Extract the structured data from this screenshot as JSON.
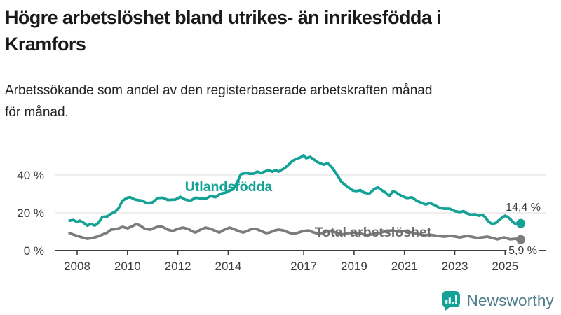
{
  "header": {
    "title_line1": "Högre arbetslöshet bland utrikes- än inrikesfödda i",
    "title_line2": "Kramfors",
    "subtitle_line1": "Arbetssökande som andel av den registerbaserade arbetskraften månad",
    "subtitle_line2": "för månad."
  },
  "chart_data": {
    "type": "line",
    "title": "Högre arbetslöshet bland utrikes- än inrikesfödda i Kramfors",
    "subtitle": "Arbetssökande som andel av den registerbaserade arbetskraften månad för månad.",
    "unit": "%",
    "grid": "horizontal-only",
    "legend_position": "inline-labels-on-lines",
    "x_axis": {
      "tick_years": [
        2008,
        2010,
        2012,
        2014,
        2017,
        2019,
        2021,
        2023,
        2025
      ],
      "tick_labels": [
        "2008",
        "2010",
        "2012",
        "2014",
        "2017",
        "2019",
        "2021",
        "2023",
        "2025"
      ],
      "range": [
        2007.6,
        2026.3
      ]
    },
    "y_axis": {
      "tick_values": [
        0,
        20,
        40
      ],
      "tick_labels": [
        "0 %",
        "20 %",
        "40 %"
      ],
      "ylim": [
        0,
        52
      ]
    },
    "series": [
      {
        "name": "Utlandsfödda",
        "color": "#15a296",
        "label_color": "#15a296",
        "end_label": "14,4 %",
        "end_value": 14.4,
        "points": [
          [
            2007.7,
            15.9
          ],
          [
            2007.85,
            16.2
          ],
          [
            2008.0,
            15.2
          ],
          [
            2008.1,
            15.9
          ],
          [
            2008.25,
            14.8
          ],
          [
            2008.4,
            13.3
          ],
          [
            2008.55,
            14.1
          ],
          [
            2008.7,
            13.3
          ],
          [
            2008.85,
            14.8
          ],
          [
            2009.0,
            17.8
          ],
          [
            2009.2,
            18.1
          ],
          [
            2009.35,
            19.6
          ],
          [
            2009.5,
            20.4
          ],
          [
            2009.65,
            22.5
          ],
          [
            2009.8,
            26.4
          ],
          [
            2010.0,
            28.0
          ],
          [
            2010.1,
            28.3
          ],
          [
            2010.3,
            27.0
          ],
          [
            2010.6,
            26.4
          ],
          [
            2010.75,
            25.2
          ],
          [
            2011.0,
            25.5
          ],
          [
            2011.2,
            27.8
          ],
          [
            2011.4,
            28.0
          ],
          [
            2011.6,
            26.8
          ],
          [
            2011.9,
            27.0
          ],
          [
            2012.1,
            28.5
          ],
          [
            2012.3,
            27.0
          ],
          [
            2012.5,
            26.4
          ],
          [
            2012.7,
            28.0
          ],
          [
            2012.9,
            27.7
          ],
          [
            2013.1,
            27.4
          ],
          [
            2013.3,
            28.9
          ],
          [
            2013.5,
            28.3
          ],
          [
            2013.7,
            30.1
          ],
          [
            2013.9,
            30.7
          ],
          [
            2014.0,
            31.4
          ],
          [
            2014.2,
            32.5
          ],
          [
            2014.35,
            36.0
          ],
          [
            2014.5,
            40.4
          ],
          [
            2014.7,
            41.1
          ],
          [
            2014.85,
            40.7
          ],
          [
            2015.0,
            40.7
          ],
          [
            2015.15,
            41.8
          ],
          [
            2015.3,
            41.1
          ],
          [
            2015.45,
            41.8
          ],
          [
            2015.6,
            42.6
          ],
          [
            2015.75,
            41.8
          ],
          [
            2015.9,
            42.6
          ],
          [
            2016.0,
            41.8
          ],
          [
            2016.1,
            42.6
          ],
          [
            2016.25,
            43.7
          ],
          [
            2016.4,
            45.5
          ],
          [
            2016.55,
            47.4
          ],
          [
            2016.7,
            48.5
          ],
          [
            2016.85,
            49.2
          ],
          [
            2017.0,
            50.4
          ],
          [
            2017.1,
            48.9
          ],
          [
            2017.25,
            49.6
          ],
          [
            2017.4,
            48.3
          ],
          [
            2017.55,
            46.8
          ],
          [
            2017.8,
            45.5
          ],
          [
            2017.95,
            46.3
          ],
          [
            2018.1,
            44.4
          ],
          [
            2018.3,
            40.7
          ],
          [
            2018.5,
            36.3
          ],
          [
            2018.75,
            33.7
          ],
          [
            2018.95,
            31.8
          ],
          [
            2019.1,
            31.5
          ],
          [
            2019.25,
            32.0
          ],
          [
            2019.4,
            30.7
          ],
          [
            2019.6,
            30.1
          ],
          [
            2019.8,
            32.6
          ],
          [
            2019.95,
            33.5
          ],
          [
            2020.1,
            32.0
          ],
          [
            2020.25,
            30.7
          ],
          [
            2020.4,
            28.9
          ],
          [
            2020.55,
            31.5
          ],
          [
            2020.7,
            30.5
          ],
          [
            2020.9,
            28.9
          ],
          [
            2021.1,
            27.8
          ],
          [
            2021.3,
            28.2
          ],
          [
            2021.5,
            26.3
          ],
          [
            2021.7,
            25.2
          ],
          [
            2021.85,
            24.4
          ],
          [
            2022.0,
            25.2
          ],
          [
            2022.2,
            24.1
          ],
          [
            2022.4,
            22.6
          ],
          [
            2022.6,
            22.2
          ],
          [
            2022.8,
            22.2
          ],
          [
            2023.0,
            20.9
          ],
          [
            2023.2,
            20.4
          ],
          [
            2023.35,
            20.9
          ],
          [
            2023.5,
            19.6
          ],
          [
            2023.65,
            19.0
          ],
          [
            2023.8,
            19.3
          ],
          [
            2023.95,
            18.5
          ],
          [
            2024.1,
            19.0
          ],
          [
            2024.2,
            17.8
          ],
          [
            2024.35,
            15.2
          ],
          [
            2024.5,
            14.1
          ],
          [
            2024.65,
            14.8
          ],
          [
            2024.8,
            16.7
          ],
          [
            2025.0,
            18.5
          ],
          [
            2025.1,
            17.8
          ],
          [
            2025.2,
            16.7
          ],
          [
            2025.3,
            15.2
          ],
          [
            2025.42,
            14.1
          ],
          [
            2025.52,
            14.8
          ],
          [
            2025.62,
            14.4
          ]
        ]
      },
      {
        "name": "Total arbetslöshet",
        "color": "#7c7c7c",
        "label_color": "#6d6d6d",
        "end_label": "5,9 %",
        "end_value": 5.9,
        "points": [
          [
            2007.7,
            9.3
          ],
          [
            2007.85,
            8.5
          ],
          [
            2008.0,
            7.8
          ],
          [
            2008.2,
            7.0
          ],
          [
            2008.4,
            6.3
          ],
          [
            2008.6,
            6.7
          ],
          [
            2008.8,
            7.4
          ],
          [
            2009.0,
            8.5
          ],
          [
            2009.2,
            9.6
          ],
          [
            2009.35,
            11.1
          ],
          [
            2009.6,
            11.5
          ],
          [
            2009.8,
            12.6
          ],
          [
            2010.0,
            11.8
          ],
          [
            2010.2,
            13.0
          ],
          [
            2010.35,
            14.1
          ],
          [
            2010.5,
            13.3
          ],
          [
            2010.7,
            11.5
          ],
          [
            2010.9,
            11.1
          ],
          [
            2011.1,
            12.2
          ],
          [
            2011.3,
            13.0
          ],
          [
            2011.45,
            12.2
          ],
          [
            2011.6,
            11.1
          ],
          [
            2011.8,
            10.4
          ],
          [
            2012.0,
            11.5
          ],
          [
            2012.2,
            12.2
          ],
          [
            2012.4,
            11.5
          ],
          [
            2012.55,
            10.4
          ],
          [
            2012.7,
            9.6
          ],
          [
            2012.9,
            11.1
          ],
          [
            2013.1,
            12.2
          ],
          [
            2013.3,
            11.5
          ],
          [
            2013.5,
            10.4
          ],
          [
            2013.65,
            9.6
          ],
          [
            2013.85,
            11.1
          ],
          [
            2014.05,
            12.2
          ],
          [
            2014.2,
            11.5
          ],
          [
            2014.4,
            10.4
          ],
          [
            2014.6,
            9.6
          ],
          [
            2014.75,
            10.4
          ],
          [
            2014.95,
            11.5
          ],
          [
            2015.1,
            11.5
          ],
          [
            2015.3,
            10.4
          ],
          [
            2015.5,
            9.3
          ],
          [
            2015.65,
            9.6
          ],
          [
            2015.85,
            10.7
          ],
          [
            2016.0,
            11.1
          ],
          [
            2016.2,
            10.7
          ],
          [
            2016.4,
            9.6
          ],
          [
            2016.6,
            8.9
          ],
          [
            2016.8,
            9.6
          ],
          [
            2017.0,
            10.4
          ],
          [
            2017.2,
            10.7
          ],
          [
            2017.4,
            9.6
          ],
          [
            2017.6,
            8.9
          ],
          [
            2017.8,
            9.6
          ],
          [
            2018.0,
            10.4
          ],
          [
            2018.3,
            9.6
          ],
          [
            2018.5,
            8.5
          ],
          [
            2018.8,
            9.3
          ],
          [
            2019.0,
            9.6
          ],
          [
            2019.3,
            8.9
          ],
          [
            2019.5,
            8.1
          ],
          [
            2019.8,
            8.9
          ],
          [
            2020.0,
            9.3
          ],
          [
            2020.3,
            10.4
          ],
          [
            2020.5,
            10.7
          ],
          [
            2020.8,
            10.0
          ],
          [
            2021.0,
            10.4
          ],
          [
            2021.3,
            9.6
          ],
          [
            2021.5,
            8.9
          ],
          [
            2021.8,
            8.1
          ],
          [
            2022.0,
            8.5
          ],
          [
            2022.3,
            7.8
          ],
          [
            2022.6,
            7.4
          ],
          [
            2022.85,
            7.9
          ],
          [
            2023.2,
            7.0
          ],
          [
            2023.5,
            7.8
          ],
          [
            2023.9,
            6.7
          ],
          [
            2024.3,
            7.4
          ],
          [
            2024.7,
            6.0
          ],
          [
            2024.95,
            7.0
          ],
          [
            2025.2,
            6.0
          ],
          [
            2025.42,
            6.3
          ],
          [
            2025.62,
            5.9
          ]
        ]
      }
    ]
  },
  "branding": {
    "logo_text": "Newsworthy",
    "logo_icon": "bar-chart-speech-bubble-icon",
    "brand_teal": "#14a296",
    "logo_text_color": "#4e7b8c"
  }
}
